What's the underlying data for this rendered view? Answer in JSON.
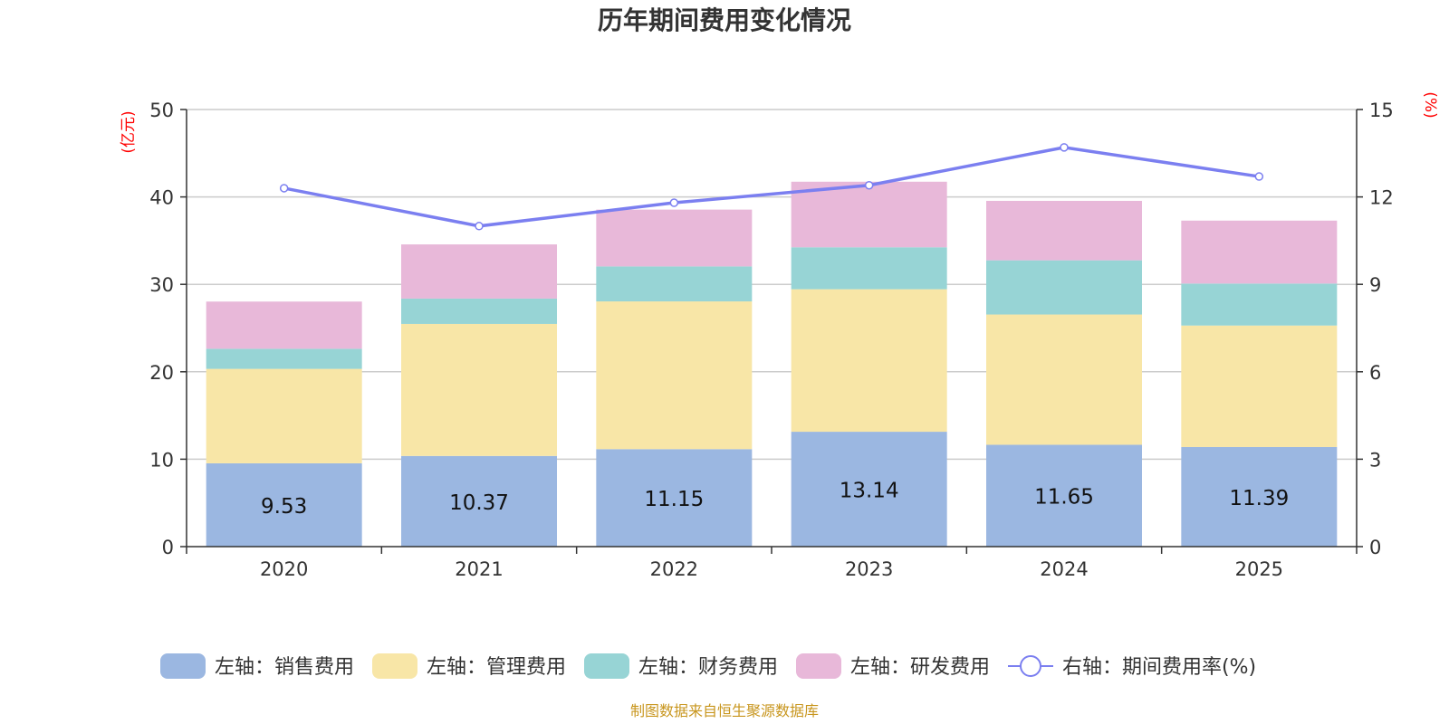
{
  "chart_data": {
    "type": "bar",
    "stacked": true,
    "title": "历年期间费用变化情况",
    "categories": [
      "2020",
      "2021",
      "2022",
      "2023",
      "2024",
      "2025"
    ],
    "left_axis": {
      "unit": "(亿元)",
      "ylim": [
        0,
        50
      ],
      "ticks": [
        "0",
        "10",
        "20",
        "30",
        "40",
        "50"
      ]
    },
    "right_axis": {
      "unit": "(%)",
      "ylim": [
        0,
        15
      ],
      "ticks": [
        "0",
        "3",
        "6",
        "9",
        "12",
        "15"
      ]
    },
    "series": [
      {
        "name": "左轴：销售费用",
        "axis": "left",
        "color": "#9bb7e1",
        "values": [
          9.53,
          10.37,
          11.15,
          13.14,
          11.65,
          11.39
        ],
        "labels": [
          "9.53",
          "10.37",
          "11.15",
          "13.14",
          "11.65",
          "11.39"
        ]
      },
      {
        "name": "左轴：管理费用",
        "axis": "left",
        "color": "#f8e6a7",
        "values": [
          10.8,
          15.1,
          16.9,
          16.3,
          14.9,
          13.9
        ]
      },
      {
        "name": "左轴：财务费用",
        "axis": "left",
        "color": "#97d4d5",
        "values": [
          2.3,
          2.9,
          4.0,
          4.8,
          6.2,
          4.8
        ]
      },
      {
        "name": "左轴：研发费用",
        "axis": "left",
        "color": "#e8b8d9",
        "values": [
          5.4,
          6.2,
          6.5,
          7.5,
          6.8,
          7.2
        ]
      },
      {
        "name": "右轴：期间费用率(%)",
        "axis": "right",
        "type": "line",
        "color": "#7b7ff0",
        "values": [
          12.3,
          11.0,
          11.8,
          12.4,
          13.7,
          12.7
        ]
      }
    ],
    "grid": true,
    "legend_position": "bottom",
    "source": "制图数据来自恒生聚源数据库"
  }
}
